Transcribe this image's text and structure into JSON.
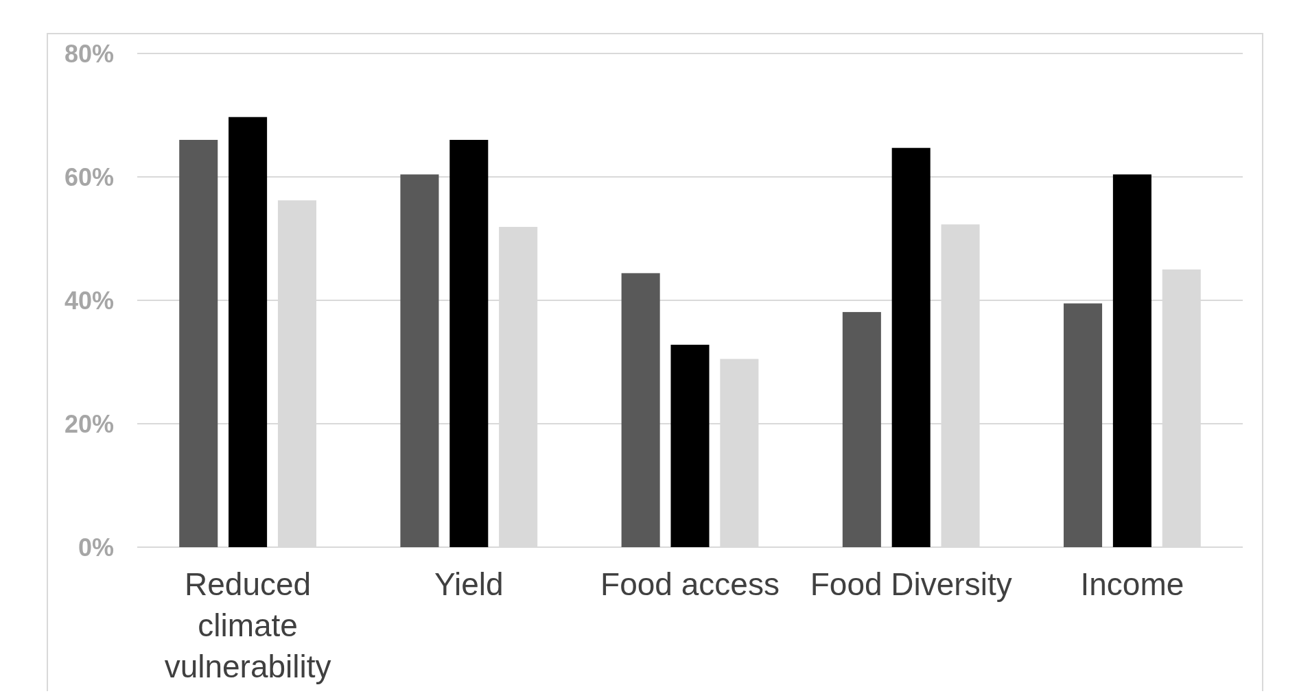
{
  "chart_data": {
    "type": "bar",
    "categories": [
      "Reduced climate vulnerability",
      "Yield",
      "Food access",
      "Food Diversity",
      "Income"
    ],
    "series": [
      {
        "color": "#595959",
        "values": [
          66,
          60.4,
          44.4,
          38.1,
          39.5
        ]
      },
      {
        "color": "#000000",
        "values": [
          69.7,
          66,
          32.8,
          64.7,
          60.4
        ]
      },
      {
        "color": "#d9d9d9",
        "values": [
          56.2,
          51.9,
          30.5,
          52.3,
          45
        ]
      }
    ],
    "ylim": [
      0,
      80
    ],
    "yticks": [
      {
        "value": 0,
        "label": "0%"
      },
      {
        "value": 20,
        "label": "20%"
      },
      {
        "value": 40,
        "label": "40%"
      },
      {
        "value": 60,
        "label": "60%"
      },
      {
        "value": 80,
        "label": "80%"
      }
    ],
    "grid": "y"
  }
}
